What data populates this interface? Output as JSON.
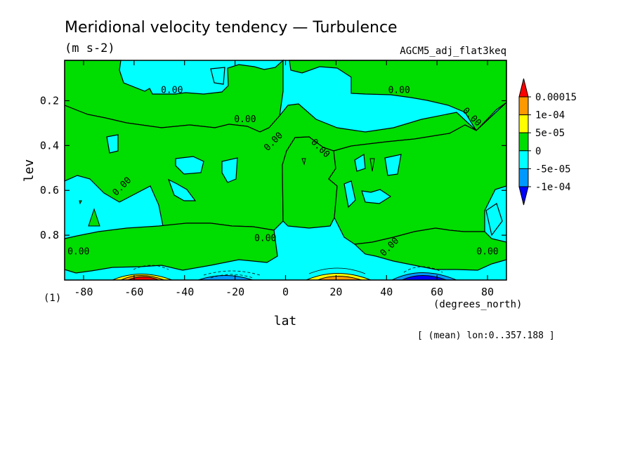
{
  "chart_data": {
    "type": "heatmap",
    "title": "Meridional velocity tendency — Turbulence",
    "units": "(m s-2)",
    "dataset": "AGCM5_adj_flat3keq",
    "xlabel": "lat",
    "x_units": "(degrees_north)",
    "ylabel": "lev",
    "ylabel_unit": "(1)",
    "footer": "[ (mean) lon:0..357.188 ]",
    "x_range": [
      -87.5,
      87.5
    ],
    "y_range": [
      1.0,
      0.02
    ],
    "y_inverted": true,
    "x_ticks": [
      -80,
      -60,
      -40,
      -20,
      0,
      20,
      40,
      60,
      80
    ],
    "x_tick_labels": [
      "-80",
      "-60",
      "-40",
      "-20",
      "0",
      "20",
      "40",
      "60",
      "80"
    ],
    "y_ticks": [
      0.2,
      0.4,
      0.6,
      0.8
    ],
    "y_tick_labels": [
      "0.2",
      "0.4",
      "0.6",
      "0.8"
    ],
    "contour_label": "0.00",
    "colorbar": {
      "levels": [
        "0.00015",
        "1e-04",
        "5e-05",
        "0",
        "-5e-05",
        "-1e-04"
      ],
      "bands": [
        {
          "range": "> 0.00015",
          "color": "#ff0000"
        },
        {
          "range": "1e-04 .. 0.00015",
          "color": "#ff9900"
        },
        {
          "range": "5e-05 .. 1e-04",
          "color": "#ffff00"
        },
        {
          "range": "0 .. 5e-05",
          "color": "#00dd00"
        },
        {
          "range": "-5e-05 .. 0",
          "color": "#00ffff"
        },
        {
          "range": "-1e-04 .. -5e-05",
          "color": "#0099ff"
        },
        {
          "range": "< -1e-04",
          "color": "#0000ff"
        }
      ]
    },
    "zero_contour_labels": [
      {
        "lat": -45,
        "lev": 0.15
      },
      {
        "lat": -16,
        "lev": 0.28
      },
      {
        "lat": -5,
        "lev": 0.38
      },
      {
        "lat": 14,
        "lev": 0.41
      },
      {
        "lat": -65,
        "lev": 0.58
      },
      {
        "lat": -8,
        "lev": 0.81
      },
      {
        "lat": 41,
        "lev": 0.85
      },
      {
        "lat": 45,
        "lev": 0.15
      },
      {
        "lat": 74,
        "lev": 0.27
      },
      {
        "lat": -82,
        "lev": 0.87
      },
      {
        "lat": 80,
        "lev": 0.87
      }
    ],
    "features": [
      {
        "desc": "strong positive maximum near surface",
        "lat": -54,
        "lev": 0.99,
        "value_band": "> 0.00015"
      },
      {
        "desc": "negative minimum near surface",
        "lat": -25,
        "lev": 0.99,
        "value_band": "-1e-04 .. -5e-05"
      },
      {
        "desc": "positive maximum near surface",
        "lat": 25,
        "lev": 0.99,
        "value_band": "1e-04 .. 0.00015"
      },
      {
        "desc": "strong negative minimum near surface",
        "lat": 54,
        "lev": 0.99,
        "value_band": "< -1e-04"
      }
    ]
  }
}
